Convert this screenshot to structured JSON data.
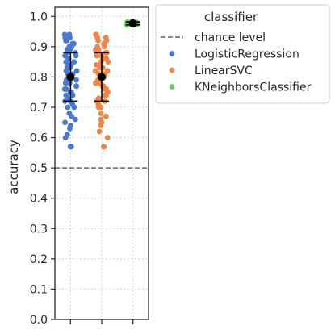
{
  "chart_data": {
    "type": "scatter",
    "title": "",
    "xlabel": "",
    "ylabel": "accuracy",
    "ylim": [
      0.0,
      1.03
    ],
    "yticks": [
      "0.0",
      "0.1",
      "0.2",
      "0.3",
      "0.4",
      "0.5",
      "0.6",
      "0.7",
      "0.8",
      "0.9",
      "1.0"
    ],
    "categories": [
      "LogisticRegression",
      "LinearSVC",
      "KNeighborsClassifier"
    ],
    "x_tick_labels": [
      "",
      "",
      ""
    ],
    "grid": true,
    "legend_placement": "outside-upper-right",
    "reference_line": {
      "label": "chance level",
      "y": 0.5,
      "style": "dashed",
      "color": "#606060"
    },
    "legend": {
      "title": "classifier",
      "entries": [
        {
          "label": "chance level",
          "kind": "line",
          "color": "#606060"
        },
        {
          "label": "LogisticRegression",
          "kind": "marker",
          "color": "#4878d0"
        },
        {
          "label": "LinearSVC",
          "kind": "marker",
          "color": "#ee854a"
        },
        {
          "label": "KNeighborsClassifier",
          "kind": "marker",
          "color": "#6acc64"
        }
      ]
    },
    "series": [
      {
        "name": "LogisticRegression",
        "color": "#4878d0",
        "mean": 0.8,
        "error": [
          0.72,
          0.88
        ],
        "values": [
          0.57,
          0.57,
          0.6,
          0.61,
          0.63,
          0.64,
          0.65,
          0.66,
          0.67,
          0.68,
          0.7,
          0.7,
          0.71,
          0.72,
          0.72,
          0.73,
          0.74,
          0.74,
          0.75,
          0.75,
          0.76,
          0.76,
          0.77,
          0.77,
          0.78,
          0.78,
          0.79,
          0.79,
          0.8,
          0.8,
          0.81,
          0.81,
          0.82,
          0.82,
          0.83,
          0.83,
          0.84,
          0.84,
          0.85,
          0.85,
          0.86,
          0.86,
          0.87,
          0.87,
          0.88,
          0.88,
          0.89,
          0.89,
          0.9,
          0.9,
          0.91,
          0.91,
          0.92,
          0.92,
          0.93,
          0.93,
          0.94,
          0.94
        ]
      },
      {
        "name": "LinearSVC",
        "color": "#ee854a",
        "mean": 0.8,
        "error": [
          0.72,
          0.88
        ],
        "values": [
          0.57,
          0.57,
          0.6,
          0.62,
          0.64,
          0.65,
          0.66,
          0.67,
          0.68,
          0.7,
          0.7,
          0.71,
          0.72,
          0.72,
          0.73,
          0.74,
          0.74,
          0.75,
          0.75,
          0.76,
          0.76,
          0.77,
          0.77,
          0.78,
          0.78,
          0.79,
          0.79,
          0.8,
          0.8,
          0.81,
          0.81,
          0.82,
          0.82,
          0.83,
          0.83,
          0.84,
          0.84,
          0.85,
          0.85,
          0.86,
          0.86,
          0.87,
          0.87,
          0.88,
          0.88,
          0.89,
          0.89,
          0.9,
          0.9,
          0.91,
          0.91,
          0.92,
          0.92,
          0.93,
          0.93,
          0.94,
          0.94
        ]
      },
      {
        "name": "KNeighborsClassifier",
        "color": "#6acc64",
        "mean": 0.977,
        "error": [
          0.972,
          0.982
        ],
        "values": [
          0.972,
          0.973,
          0.974,
          0.975,
          0.976,
          0.977,
          0.978,
          0.979,
          0.98,
          0.981,
          0.982,
          0.975,
          0.978,
          0.98
        ]
      }
    ]
  }
}
